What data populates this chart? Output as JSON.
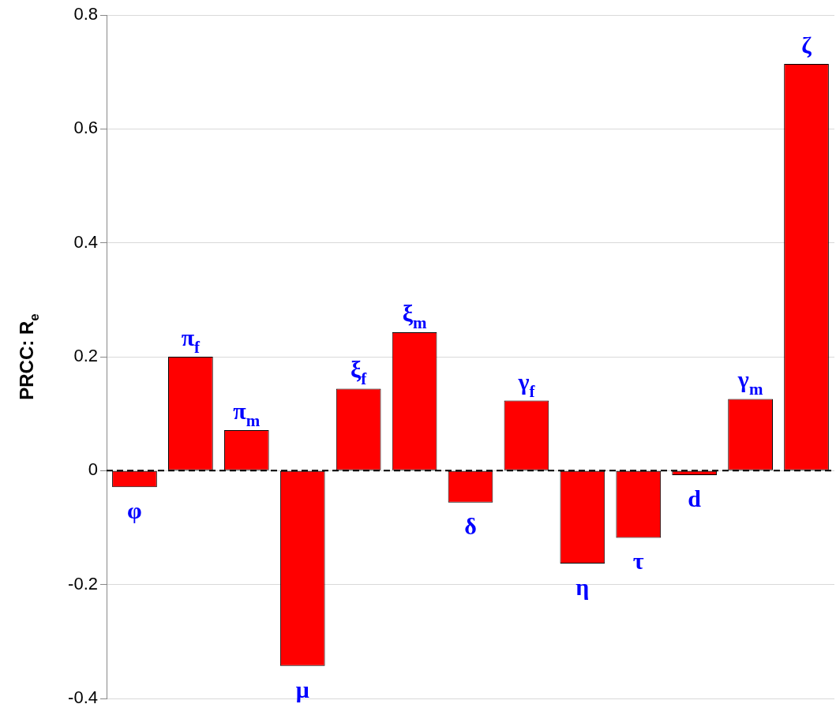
{
  "chart_data": {
    "type": "bar",
    "ylabel": "PRCC: R$_{e}$",
    "categories": [
      "φ",
      "π$_{f}$",
      "π$_{m}$",
      "μ",
      "ξ$_{f}$",
      "ξ$_{m}$",
      "δ",
      "γ$_{f}$",
      "η",
      "τ",
      "d",
      "γ$_{m}$",
      "ζ"
    ],
    "values": [
      -0.029,
      0.2,
      0.071,
      -0.343,
      0.144,
      0.243,
      -0.056,
      0.123,
      -0.163,
      -0.118,
      -0.008,
      0.126,
      0.714
    ],
    "color": "#ff0000",
    "ylim": [
      -0.4,
      0.8
    ],
    "yticks": [
      -0.4,
      -0.2,
      0,
      0.2,
      0.4,
      0.6,
      0.8
    ],
    "grid": "y",
    "ref_lines": [
      {
        "axis": "y",
        "value": 0,
        "line_style": "dashed",
        "color": "#000000"
      }
    ],
    "tick_labels": "y"
  }
}
